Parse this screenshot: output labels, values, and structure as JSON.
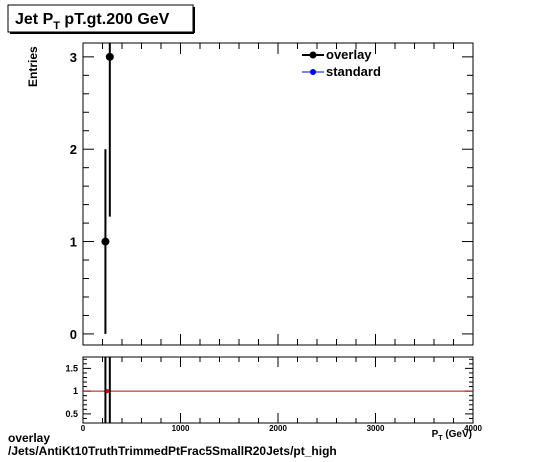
{
  "chart_data": [
    {
      "type": "scatter",
      "title": "Jet P",
      "title_sub": "T",
      "title_rest": " pT.gt.200 GeV",
      "ylabel": "Entries",
      "xlabel": "P",
      "xlabel_sub": "T",
      "xlabel_rest": " (GeV)",
      "xlim": [
        0,
        4000
      ],
      "ylim": [
        -0.12,
        3.15
      ],
      "yticks": [
        0,
        1,
        2,
        3
      ],
      "ytick_labels": [
        "0",
        "1",
        "2",
        "3"
      ],
      "grid": false,
      "legend_position": "top-right",
      "series": [
        {
          "name": "overlay",
          "color": "#000000",
          "points": [
            {
              "x": 230,
              "y": 1,
              "err_low": 1,
              "err_high": 1
            },
            {
              "x": 275,
              "y": 3,
              "err_low": 1.73,
              "err_high": 1.73
            }
          ]
        },
        {
          "name": "standard",
          "color": "#0000ff",
          "points": []
        }
      ]
    },
    {
      "type": "line",
      "xlim": [
        0,
        4000
      ],
      "ylim": [
        0.3,
        1.75
      ],
      "xticks": [
        0,
        1000,
        2000,
        3000,
        4000
      ],
      "xtick_labels": [
        "0",
        "1000",
        "2000",
        "3000",
        "4000"
      ],
      "yticks": [
        0.5,
        1,
        1.5
      ],
      "ytick_labels": [
        "0.5",
        "1",
        "1.5"
      ],
      "reference_line": {
        "y": 1,
        "color": "#cc0000"
      },
      "error_bars": [
        {
          "x": 230,
          "low": 0.3,
          "high": 1.75
        },
        {
          "x": 275,
          "low": 0.3,
          "high": 1.75
        }
      ],
      "markers": [
        {
          "x": 250,
          "y": 1
        }
      ]
    }
  ],
  "footer": {
    "line1": "overlay",
    "line2": "/Jets/AntiKt10TruthTrimmedPtFrac5SmallR20Jets/pt_high"
  }
}
